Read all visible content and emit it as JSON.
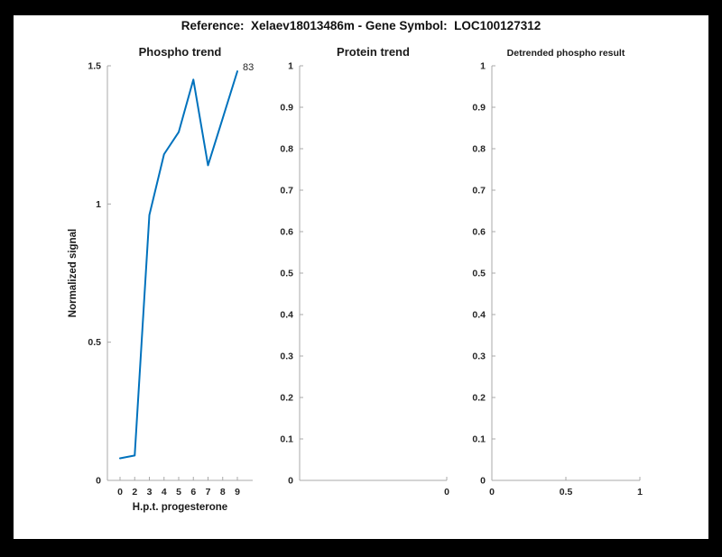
{
  "figure": {
    "title": "Reference:  Xelaev18013486m - Gene Symbol:  LOC100127312",
    "background_color": "#000000",
    "canvas_color": "#ffffff"
  },
  "colors": {
    "line": "#0072BD",
    "axis": "#a8a8a8",
    "tick_label": "#262626",
    "title_text": "#1a1a1a"
  },
  "chart_data": [
    {
      "id": "phospho",
      "type": "line",
      "title": "Phospho trend",
      "xlabel": "H.p.t. progesterone",
      "ylabel": "Normalized signal",
      "ylim": [
        0,
        1.5
      ],
      "y_ticks": [
        0,
        0.5,
        1,
        1.5
      ],
      "y_tick_labels": [
        "0",
        "0.5",
        "1",
        "1.5"
      ],
      "x_tick_labels": [
        "0",
        "2",
        "3",
        "4",
        "5",
        "6",
        "7",
        "8",
        "9"
      ],
      "grid": false,
      "series": [
        {
          "name": "83",
          "x": [
            0,
            2,
            3,
            4,
            5,
            6,
            7,
            8,
            9
          ],
          "values": [
            0.08,
            0.09,
            0.96,
            1.18,
            1.26,
            1.45,
            1.14,
            1.31,
            1.48
          ],
          "color": "#0072BD",
          "end_label": "83"
        }
      ]
    },
    {
      "id": "protein",
      "type": "line",
      "title": "Protein trend",
      "xlabel": "",
      "ylabel": "",
      "ylim": [
        0,
        1
      ],
      "y_ticks": [
        0,
        0.1,
        0.2,
        0.3,
        0.4,
        0.5,
        0.6,
        0.7,
        0.8,
        0.9,
        1
      ],
      "y_tick_labels": [
        "0",
        "0.1",
        "0.2",
        "0.3",
        "0.4",
        "0.5",
        "0.6",
        "0.7",
        "0.8",
        "0.9",
        "1"
      ],
      "x_tick_labels": [
        "0"
      ],
      "grid": false,
      "series": []
    },
    {
      "id": "detrended",
      "type": "line",
      "title": "Detrended phospho result",
      "xlabel": "",
      "ylabel": "",
      "ylim": [
        0,
        1
      ],
      "y_ticks": [
        0,
        0.1,
        0.2,
        0.3,
        0.4,
        0.5,
        0.6,
        0.7,
        0.8,
        0.9,
        1
      ],
      "y_tick_labels": [
        "0",
        "0.1",
        "0.2",
        "0.3",
        "0.4",
        "0.5",
        "0.6",
        "0.7",
        "0.8",
        "0.9",
        "1"
      ],
      "x_tick_labels": [
        "0",
        "0.5",
        "1"
      ],
      "grid": false,
      "series": []
    }
  ]
}
